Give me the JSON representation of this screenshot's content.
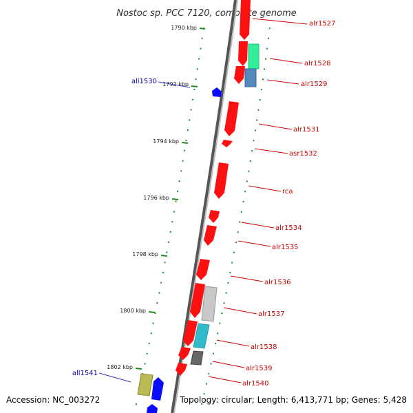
{
  "title": "Nostoc sp. PCC 7120, complete genome",
  "footer": {
    "accession": "Accession: NC_003272",
    "summary": "Topology: circular; Length: 6,413,771 bp; Genes: 5,428"
  },
  "colors": {
    "forward_gene": "#ff0000",
    "reverse_gene": "#0000ff",
    "forward_label": "#cc0000",
    "reverse_label": "#0000aa",
    "backbone": "#777777",
    "tick": "#228822"
  },
  "position_ticks": [
    "1790 kbp",
    "1792 kbp",
    "1794 kbp",
    "1796 kbp",
    "1798 kbp",
    "1800 kbp",
    "1802 kbp"
  ],
  "forward_genes": [
    "alr1527",
    "alr1528",
    "alr1529",
    "alr1531",
    "asr1532",
    "rca",
    "alr1534",
    "alr1535",
    "alr1536",
    "alr1537",
    "alr1538",
    "alr1539",
    "alr1540"
  ],
  "reverse_genes": [
    "all1530",
    "all1541"
  ]
}
